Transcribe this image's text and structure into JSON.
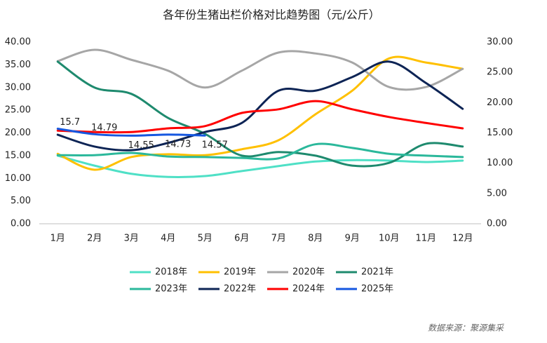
{
  "chart_data": {
    "type": "line",
    "title": "各年份生猪出栏价格对比趋势图（元/公斤）",
    "source": "数据来源：聚源集采",
    "categories": [
      "1月",
      "2月",
      "3月",
      "4月",
      "5月",
      "6月",
      "7月",
      "8月",
      "9月",
      "10月",
      "11月",
      "12月"
    ],
    "ylim": [
      0,
      40
    ],
    "yticks": [
      {
        "value": 0,
        "label": "0.00"
      },
      {
        "value": 5,
        "label": "5.00"
      },
      {
        "value": 10,
        "label": "10.00"
      },
      {
        "value": 15,
        "label": "15.00"
      },
      {
        "value": 20,
        "label": "20.00"
      },
      {
        "value": 25,
        "label": "25.00"
      },
      {
        "value": 30,
        "label": "30.00"
      },
      {
        "value": 35,
        "label": "35.00"
      },
      {
        "value": 40,
        "label": "40.00"
      }
    ],
    "y2lim": [
      0,
      30
    ],
    "y2ticks": [
      {
        "value": 0,
        "label": "0.00"
      },
      {
        "value": 5,
        "label": "5.00"
      },
      {
        "value": 10,
        "label": "10.00"
      },
      {
        "value": 15,
        "label": "15.00"
      },
      {
        "value": 20,
        "label": "20.00"
      },
      {
        "value": 25,
        "label": "25.00"
      },
      {
        "value": 30,
        "label": "30.00"
      }
    ],
    "grid": false,
    "legend": "bottom",
    "series": [
      {
        "name": "2018年",
        "color": "#4fe0c6",
        "values": [
          15.0,
          12.8,
          11.0,
          10.3,
          10.5,
          11.6,
          12.7,
          13.7,
          14.0,
          13.9,
          13.6,
          13.9
        ]
      },
      {
        "name": "2019年",
        "color": "#ffc000",
        "values": [
          15.4,
          11.9,
          14.7,
          15.3,
          15.1,
          16.4,
          18.4,
          24.1,
          29.3,
          36.4,
          35.5,
          34.1
        ]
      },
      {
        "name": "2020年",
        "color": "#a6a6a6",
        "values": [
          35.8,
          38.3,
          36.1,
          33.7,
          30.0,
          33.7,
          37.7,
          37.5,
          35.5,
          30.1,
          30.1,
          34.1
        ]
      },
      {
        "name": "2021年",
        "color": "#1e8a6e",
        "values": [
          35.7,
          30.0,
          28.6,
          23.3,
          19.8,
          15.0,
          15.8,
          15.0,
          12.8,
          13.4,
          17.6,
          17.0
        ]
      },
      {
        "name": "2023年",
        "color": "#2bb89b",
        "values": [
          15.1,
          15.1,
          15.6,
          14.8,
          14.7,
          14.5,
          14.4,
          17.5,
          16.7,
          15.4,
          15.0,
          14.7
        ]
      },
      {
        "name": "2022年",
        "color": "#0d2455",
        "values": [
          19.6,
          17.0,
          16.2,
          17.8,
          20.2,
          22.2,
          29.3,
          29.3,
          32.3,
          35.7,
          31.0,
          25.3
        ]
      },
      {
        "name": "2024年",
        "color": "#ff0000",
        "values": [
          20.5,
          20.2,
          20.2,
          21.0,
          21.5,
          24.4,
          25.2,
          27.0,
          25.2,
          23.5,
          22.2,
          21.0
        ]
      },
      {
        "name": "2025年",
        "color": "#1557e0",
        "axis": "y2",
        "values": [
          15.7,
          14.79,
          14.55,
          14.73,
          14.57,
          null,
          null,
          null,
          null,
          null,
          null,
          null
        ]
      }
    ]
  }
}
